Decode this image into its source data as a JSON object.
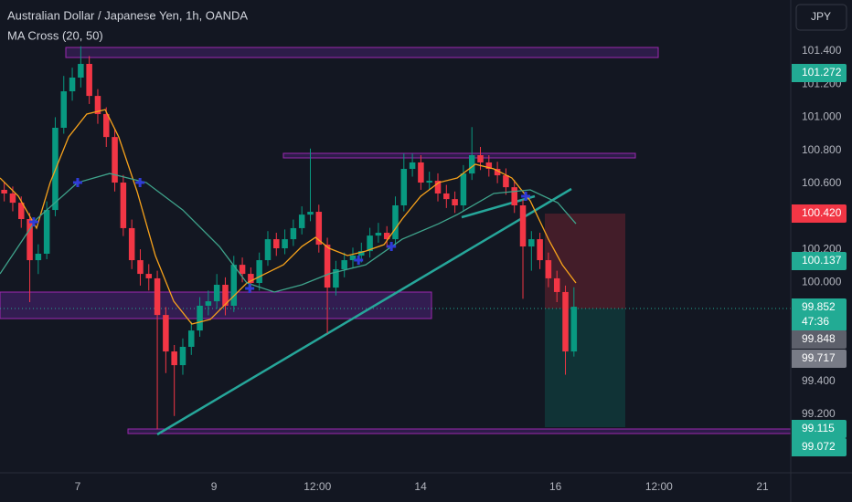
{
  "chart_data": {
    "type": "candlestick",
    "title": "Australian Dollar / Japanese Yen, 1h, OANDA",
    "indicator": "MA Cross (20, 50)",
    "currency": "JPY",
    "up_color": "#089981",
    "down_color": "#f23645",
    "x": [
      1.5,
      4.5,
      7.5,
      10.5,
      13.5,
      16.5,
      19.5,
      22.5,
      25.5,
      28.5,
      31.5,
      34.5,
      37.5,
      40.5,
      43.5,
      46.5,
      49.5,
      52.5,
      55.5,
      58.5,
      61.5,
      64.5,
      67.5,
      70.5,
      73.5,
      76.5,
      79.5,
      82.5,
      85.5,
      88.5,
      91.5,
      94.5,
      97.5,
      100.5,
      103.5,
      106.5,
      109.5,
      112.5,
      115.5,
      118.5,
      121.5,
      124.5,
      127.5,
      130.5,
      133.5,
      136.5,
      139.5,
      142.5,
      145.5,
      148.5,
      151.5,
      154.5,
      157.5,
      160.5,
      163.5,
      166.5,
      169.5,
      172.5,
      175.5,
      178.5,
      181.5,
      184.5,
      187.5,
      190.5,
      193.5,
      196.5,
      199.5,
      202.5
    ],
    "open": [
      100.56,
      100.538,
      100.482,
      100.383,
      100.134,
      100.173,
      100.438,
      100.936,
      101.157,
      101.24,
      101.323,
      101.129,
      101.019,
      100.88,
      100.604,
      100.328,
      100.134,
      100.051,
      100.024,
      99.802,
      99.581,
      99.498,
      99.609,
      99.708,
      99.858,
      99.885,
      99.985,
      99.858,
      100.106,
      100.051,
      99.996,
      100.134,
      100.261,
      100.206,
      100.261,
      100.328,
      100.41,
      100.427,
      100.228,
      99.968,
      100.079,
      100.134,
      100.162,
      100.189,
      100.283,
      100.3,
      100.261,
      100.466,
      100.687,
      100.726,
      100.604,
      100.615,
      100.538,
      100.504,
      100.466,
      100.659,
      100.77,
      100.726,
      100.687,
      100.648,
      100.576,
      100.466,
      100.217,
      100.261,
      100.134,
      100.024,
      99.941,
      99.581
    ],
    "high": [
      100.61,
      100.58,
      100.52,
      100.42,
      100.23,
      100.49,
      101.0,
      101.25,
      101.3,
      101.43,
      101.37,
      101.17,
      101.06,
      100.93,
      100.65,
      100.38,
      100.2,
      100.11,
      100.07,
      99.85,
      99.62,
      99.66,
      99.76,
      99.91,
      99.95,
      100.05,
      100.03,
      100.16,
      100.15,
      100.09,
      100.18,
      100.31,
      100.3,
      100.32,
      100.38,
      100.46,
      100.81,
      100.47,
      100.27,
      100.13,
      100.18,
      100.21,
      100.24,
      100.33,
      100.36,
      100.34,
      100.52,
      100.78,
      100.78,
      100.77,
      100.67,
      100.66,
      100.59,
      100.55,
      100.71,
      100.94,
      100.82,
      100.77,
      100.73,
      100.69,
      100.62,
      100.5,
      100.31,
      100.3,
      100.18,
      100.07,
      99.98,
      99.97
    ],
    "low": [
      100.49,
      100.43,
      100.33,
      99.88,
      100.05,
      100.14,
      100.4,
      100.9,
      101.1,
      101.18,
      101.08,
      100.96,
      100.82,
      100.55,
      100.28,
      100.08,
      99.98,
      99.95,
      99.11,
      99.45,
      99.19,
      99.44,
      99.56,
      99.67,
      99.8,
      99.84,
      99.8,
      99.82,
      100.0,
      99.94,
      99.95,
      100.1,
      100.16,
      100.17,
      100.22,
      100.29,
      100.37,
      100.18,
      99.69,
      99.92,
      100.03,
      100.09,
      100.12,
      100.15,
      100.24,
      100.21,
      100.22,
      100.43,
      100.64,
      100.56,
      100.56,
      100.49,
      100.45,
      100.42,
      100.43,
      100.62,
      100.68,
      100.64,
      100.6,
      100.53,
      100.42,
      99.9,
      100.07,
      100.08,
      99.97,
      99.88,
      99.44,
      99.55
    ],
    "close": [
      100.538,
      100.482,
      100.383,
      100.134,
      100.173,
      100.438,
      100.936,
      101.157,
      101.24,
      101.323,
      101.129,
      101.019,
      100.88,
      100.604,
      100.328,
      100.134,
      100.051,
      100.024,
      99.802,
      99.581,
      99.498,
      99.609,
      99.708,
      99.858,
      99.885,
      99.985,
      99.858,
      100.106,
      100.051,
      99.996,
      100.134,
      100.261,
      100.206,
      100.261,
      100.328,
      100.41,
      100.427,
      100.228,
      99.968,
      100.079,
      100.134,
      100.162,
      100.189,
      100.283,
      100.3,
      100.261,
      100.466,
      100.687,
      100.726,
      100.604,
      100.615,
      100.538,
      100.504,
      100.466,
      100.659,
      100.77,
      100.726,
      100.687,
      100.648,
      100.576,
      100.466,
      100.217,
      100.261,
      100.134,
      100.024,
      99.941,
      99.581,
      99.852
    ],
    "series": [
      {
        "color": "#f7a21b",
        "x": [
          0,
          6.5,
          12.9,
          17.7,
          24.2,
          30.6,
          37.1,
          41.9,
          48.4,
          54.8,
          61.3,
          67.7,
          74.2,
          80.6,
          87.1,
          93.5,
          100,
          106.5,
          111.3,
          116.1,
          122.6,
          129,
          135.5,
          141.9,
          148.4,
          154.8,
          161.3,
          167.7,
          174.2,
          180.6,
          187.1,
          193.5,
          198.4,
          203.2
        ],
        "values": [
          100.632,
          100.521,
          100.328,
          100.604,
          100.88,
          101.019,
          101.046,
          100.88,
          100.549,
          100.162,
          99.885,
          99.747,
          99.775,
          99.885,
          99.996,
          100.051,
          100.106,
          100.217,
          100.272,
          100.206,
          100.162,
          100.189,
          100.228,
          100.383,
          100.521,
          100.604,
          100.632,
          100.715,
          100.687,
          100.632,
          100.493,
          100.261,
          100.106,
          99.996
        ]
      },
      {
        "color": "#3fa48c",
        "x": [
          0,
          12.9,
          27.4,
          38.7,
          51.6,
          64.5,
          77.4,
          87.1,
          96.8,
          106.5,
          116.1,
          129,
          141.9,
          154.8,
          161.3,
          174.2,
          187.1,
          196.8,
          203.2
        ],
        "values": [
          100.051,
          100.383,
          100.604,
          100.659,
          100.604,
          100.438,
          100.217,
          99.996,
          99.941,
          99.985,
          100.051,
          100.106,
          100.261,
          100.355,
          100.41,
          100.538,
          100.56,
          100.482,
          100.355
        ]
      }
    ],
    "markers": {
      "color": "#2f3bd6",
      "x": [
        11.9,
        27.4,
        49.4,
        88.1,
        126.5,
        138.1,
        185.5
      ],
      "values": [
        100.366,
        100.604,
        100.604,
        99.963,
        100.134,
        100.217,
        100.521
      ]
    },
    "xlim": [
      0,
      279
    ],
    "ylim": [
      98.846,
      101.71
    ],
    "xticks": [
      {
        "value": 27.4,
        "label": "7"
      },
      {
        "value": 75.5,
        "label": "9"
      },
      {
        "value": 112,
        "label": "12:00"
      },
      {
        "value": 148.4,
        "label": "14"
      },
      {
        "value": 196,
        "label": "16"
      },
      {
        "value": 232.5,
        "label": "12:00"
      },
      {
        "value": 269,
        "label": "21"
      }
    ],
    "yticks": [
      {
        "value": 99.2,
        "label": "99.200"
      },
      {
        "value": 99.4,
        "label": "99.400"
      },
      {
        "value": 100,
        "label": "100.000"
      },
      {
        "value": 100.2,
        "label": "100.200"
      },
      {
        "value": 100.6,
        "label": "100.600"
      },
      {
        "value": 100.8,
        "label": "100.800"
      },
      {
        "value": 101,
        "label": "101.000"
      },
      {
        "value": 101.2,
        "label": "101.200"
      },
      {
        "value": 101.4,
        "label": "101.400"
      }
    ],
    "grid": false,
    "price_tags": [
      {
        "label": "101.272",
        "color": "#22ab94"
      },
      {
        "label": "100.420",
        "color": "#f23645"
      },
      {
        "label": "100.137",
        "color": "#22ab94"
      },
      {
        "label": "99.852",
        "sub": "47:36",
        "color": "#22ab94"
      },
      {
        "label": "99.848",
        "color": "#5d606b"
      },
      {
        "label": "99.717",
        "color": "#787b86"
      },
      {
        "label": "99.115",
        "color": "#22ab94"
      },
      {
        "label": "99.072",
        "color": "#22ab94"
      }
    ]
  }
}
